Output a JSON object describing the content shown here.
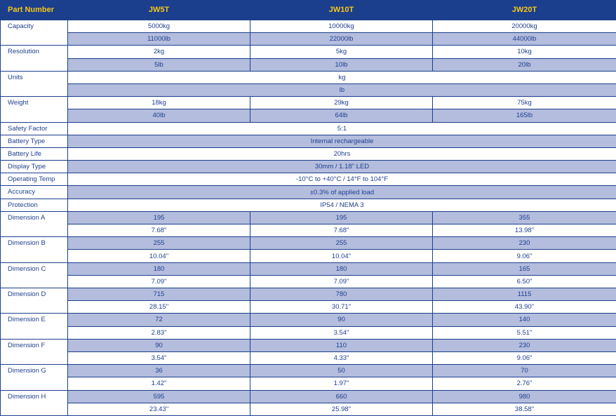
{
  "header": {
    "part_number": "Part Number",
    "models": [
      "JW5T",
      "JW10T",
      "JW20T"
    ]
  },
  "rows": {
    "capacity": {
      "label": "Capacity",
      "kg": [
        "5000kg",
        "10000kg",
        "20000kg"
      ],
      "lb": [
        "11000lb",
        "22000lb",
        "44000lb"
      ]
    },
    "resolution": {
      "label": "Resolution",
      "kg": [
        "2kg",
        "5kg",
        "10kg"
      ],
      "lb": [
        "5lb",
        "10lb",
        "20lb"
      ]
    },
    "units": {
      "label": "Units",
      "kg": "kg",
      "lb": "lb"
    },
    "weight": {
      "label": "Weight",
      "kg": [
        "18kg",
        "29kg",
        "75kg"
      ],
      "lb": [
        "40lb",
        "64lb",
        "165lb"
      ]
    },
    "safety_factor": {
      "label": "Safety Factor",
      "value": "5:1"
    },
    "battery_type": {
      "label": "Battery Type",
      "value": "Internal rechargeable"
    },
    "battery_life": {
      "label": "Battery Life",
      "value": "20hrs"
    },
    "display_type": {
      "label": "Display Type",
      "value": "30mm / 1.18\" LED"
    },
    "operating_temp": {
      "label": "Operating Temp",
      "value": "-10°C to +40°C / 14°F to 104°F"
    },
    "accuracy": {
      "label": "Accuracy",
      "value": "±0.3% of applied load"
    },
    "protection": {
      "label": "Protection",
      "value": "IP54 / NEMA 3"
    },
    "dimensions": [
      {
        "label": "Dimension A",
        "mm": [
          "195",
          "195",
          "355"
        ],
        "in": [
          "7.68\"",
          "7.68\"",
          "13.98\""
        ]
      },
      {
        "label": "Dimension B",
        "mm": [
          "255",
          "255",
          "230"
        ],
        "in": [
          "10.04\"",
          "10.04\"",
          "9.06\""
        ]
      },
      {
        "label": "Dimension C",
        "mm": [
          "180",
          "180",
          "165"
        ],
        "in": [
          "7.09\"",
          "7.09\"",
          "6.50\""
        ]
      },
      {
        "label": "Dimension D",
        "mm": [
          "715",
          "780",
          "1115"
        ],
        "in": [
          "28.15\"",
          "30.71\"",
          "43.90\""
        ]
      },
      {
        "label": "Dimension E",
        "mm": [
          "72",
          "90",
          "140"
        ],
        "in": [
          "2.83\"",
          "3.54\"",
          "5.51\""
        ]
      },
      {
        "label": "Dimension F",
        "mm": [
          "90",
          "110",
          "230"
        ],
        "in": [
          "3.54\"",
          "4.33\"",
          "9.06\""
        ]
      },
      {
        "label": "Dimension G",
        "mm": [
          "36",
          "50",
          "70"
        ],
        "in": [
          "1.42\"",
          "1.97\"",
          "2.76\""
        ]
      },
      {
        "label": "Dimension H",
        "mm": [
          "595",
          "660",
          "980"
        ],
        "in": [
          "23.43\"",
          "25.98\"",
          "38.58\""
        ]
      }
    ]
  },
  "colors": {
    "header_bg": "#1b3f8c",
    "header_text": "#f5c518",
    "body_text": "#1f3f8f",
    "shaded_row": "#b4bddd",
    "border": "#1b3f8c"
  }
}
